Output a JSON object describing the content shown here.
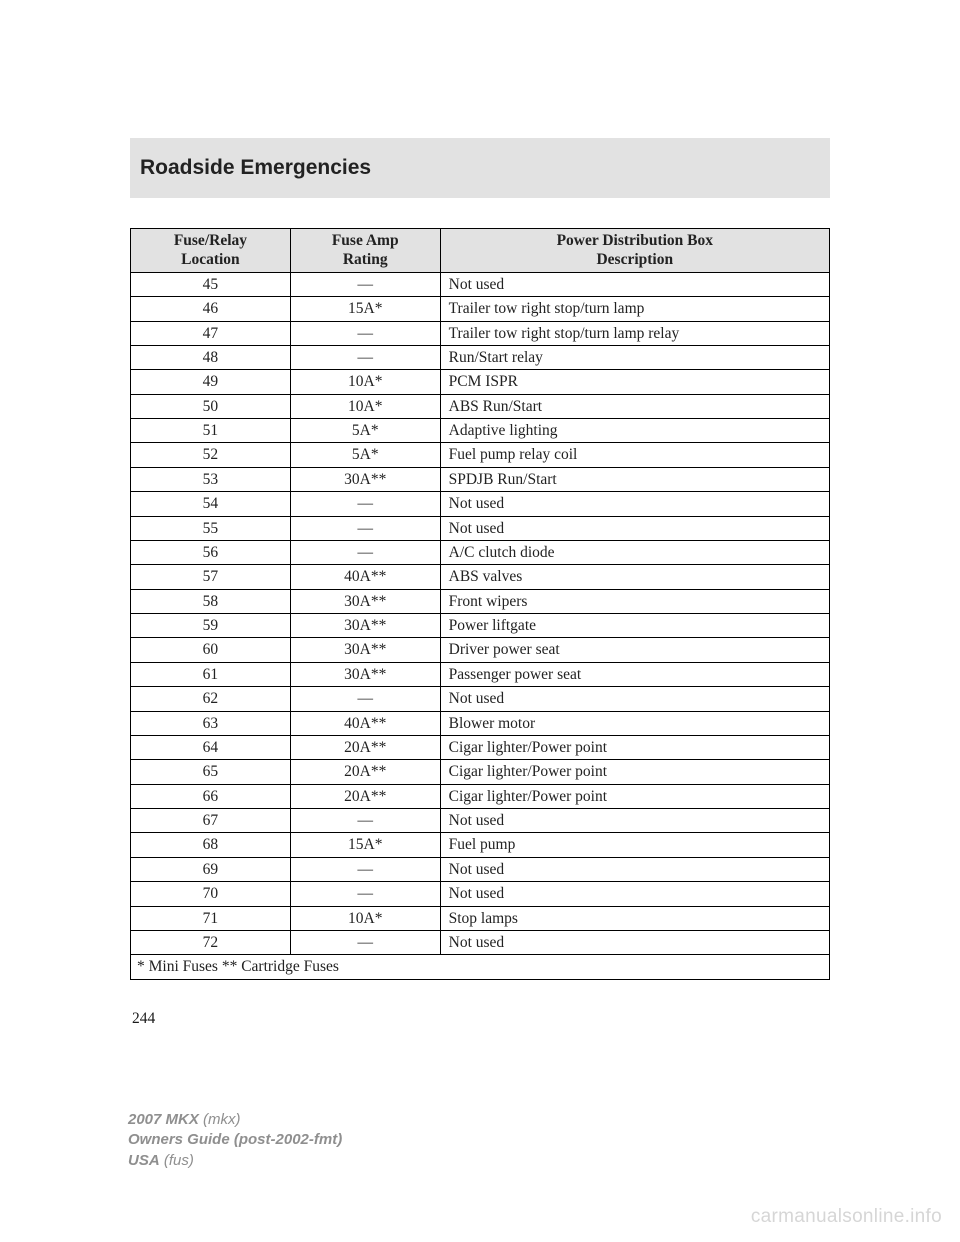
{
  "header": {
    "section_title": "Roadside Emergencies"
  },
  "fuse_table": {
    "columns": [
      {
        "line1": "Fuse/Relay",
        "line2": "Location"
      },
      {
        "line1": "Fuse Amp",
        "line2": "Rating"
      },
      {
        "line1": "Power Distribution Box",
        "line2": "Description"
      }
    ],
    "rows": [
      {
        "loc": "45",
        "amp": "—",
        "desc": "Not used"
      },
      {
        "loc": "46",
        "amp": "15A*",
        "desc": "Trailer tow right stop/turn lamp"
      },
      {
        "loc": "47",
        "amp": "—",
        "desc": "Trailer tow right stop/turn lamp relay"
      },
      {
        "loc": "48",
        "amp": "—",
        "desc": "Run/Start relay"
      },
      {
        "loc": "49",
        "amp": "10A*",
        "desc": "PCM ISPR"
      },
      {
        "loc": "50",
        "amp": "10A*",
        "desc": "ABS Run/Start"
      },
      {
        "loc": "51",
        "amp": "5A*",
        "desc": "Adaptive lighting"
      },
      {
        "loc": "52",
        "amp": "5A*",
        "desc": "Fuel pump relay coil"
      },
      {
        "loc": "53",
        "amp": "30A**",
        "desc": "SPDJB Run/Start"
      },
      {
        "loc": "54",
        "amp": "—",
        "desc": "Not used"
      },
      {
        "loc": "55",
        "amp": "—",
        "desc": "Not used"
      },
      {
        "loc": "56",
        "amp": "—",
        "desc": "A/C clutch diode"
      },
      {
        "loc": "57",
        "amp": "40A**",
        "desc": "ABS valves"
      },
      {
        "loc": "58",
        "amp": "30A**",
        "desc": "Front wipers"
      },
      {
        "loc": "59",
        "amp": "30A**",
        "desc": "Power liftgate"
      },
      {
        "loc": "60",
        "amp": "30A**",
        "desc": "Driver power seat"
      },
      {
        "loc": "61",
        "amp": "30A**",
        "desc": "Passenger power seat"
      },
      {
        "loc": "62",
        "amp": "—",
        "desc": "Not used"
      },
      {
        "loc": "63",
        "amp": "40A**",
        "desc": "Blower motor"
      },
      {
        "loc": "64",
        "amp": "20A**",
        "desc": "Cigar lighter/Power point"
      },
      {
        "loc": "65",
        "amp": "20A**",
        "desc": "Cigar lighter/Power point"
      },
      {
        "loc": "66",
        "amp": "20A**",
        "desc": "Cigar lighter/Power point"
      },
      {
        "loc": "67",
        "amp": "—",
        "desc": "Not used"
      },
      {
        "loc": "68",
        "amp": "15A*",
        "desc": "Fuel pump"
      },
      {
        "loc": "69",
        "amp": "—",
        "desc": "Not used"
      },
      {
        "loc": "70",
        "amp": "—",
        "desc": "Not used"
      },
      {
        "loc": "71",
        "amp": "10A*",
        "desc": "Stop lamps"
      },
      {
        "loc": "72",
        "amp": "—",
        "desc": "Not used"
      }
    ],
    "footnote": "* Mini Fuses ** Cartridge Fuses"
  },
  "page_number": "244",
  "footer": {
    "line1_bold": "2007 MKX",
    "line1_rest": " (mkx)",
    "line2": "Owners Guide (post-2002-fmt)",
    "line3_bold": "USA",
    "line3_rest": " (fus)"
  },
  "watermark": "carmanualsonline.info"
}
